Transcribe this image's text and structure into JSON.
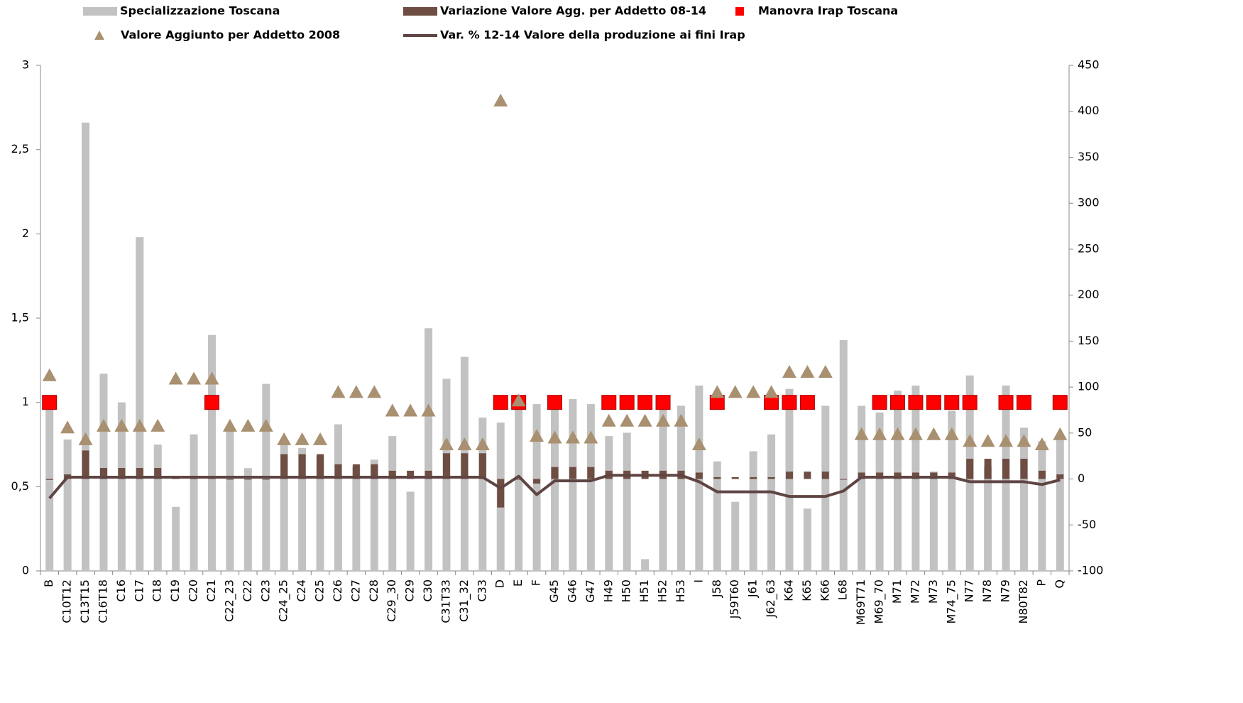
{
  "chart_data": {
    "type": "combo",
    "categories": [
      "B",
      "C10T12",
      "C13T15",
      "C16T18",
      "C16",
      "C17",
      "C18",
      "C19",
      "C20",
      "C21",
      "C22_23",
      "C22",
      "C23",
      "C24_25",
      "C24",
      "C25",
      "C26",
      "C27",
      "C28",
      "C29_30",
      "C29",
      "C30",
      "C31T33",
      "C31_32",
      "C33",
      "D",
      "E",
      "F",
      "G45",
      "G46",
      "G47",
      "H49",
      "H50",
      "H51",
      "H52",
      "H53",
      "I",
      "J58",
      "J59T60",
      "J61",
      "J62_63",
      "K64",
      "K65",
      "K66",
      "L68",
      "M69T71",
      "M69_70",
      "M71",
      "M72",
      "M73",
      "M74_75",
      "N77",
      "N78",
      "N79",
      "N80T82",
      "P",
      "Q"
    ],
    "series": [
      {
        "name": "Specializzazione   Toscana",
        "type": "bar",
        "color": "#c3c2c2",
        "values": [
          0.98,
          0.78,
          2.66,
          1.17,
          1.0,
          1.98,
          0.75,
          0.38,
          0.81,
          1.4,
          0.85,
          0.61,
          1.11,
          0.75,
          0.73,
          0.68,
          0.87,
          0.62,
          0.66,
          0.8,
          0.47,
          1.44,
          1.14,
          1.27,
          0.91,
          0.88,
          0.98,
          0.99,
          0.98,
          1.02,
          0.99,
          0.8,
          0.82,
          0.07,
          0.96,
          0.98,
          1.1,
          0.65,
          0.41,
          0.71,
          0.81,
          1.08,
          0.37,
          0.98,
          1.37,
          0.98,
          0.94,
          1.07,
          1.1,
          0.59,
          0.95,
          1.16,
          0.62,
          1.1,
          0.85,
          0.77,
          0.8
        ]
      },
      {
        "name": "Variazione Valore Agg. per Addetto 08-14",
        "type": "bar",
        "axis": "y2",
        "color": "#6e4d42",
        "values": [
          -1,
          5,
          31,
          12,
          12,
          12,
          12,
          2,
          2,
          2,
          0,
          0,
          0,
          27,
          27,
          27,
          16,
          16,
          16,
          9,
          9,
          9,
          28,
          28,
          28,
          -31,
          0,
          -5,
          13,
          13,
          13,
          9,
          9,
          9,
          9,
          9,
          7,
          2,
          2,
          2,
          2,
          8,
          8,
          8,
          0,
          7,
          7,
          7,
          7,
          7,
          7,
          22,
          22,
          22,
          22,
          9,
          5
        ]
      },
      {
        "name": "Manovra Irap   Toscana",
        "type": "square",
        "color": "#ff0000",
        "values": [
          1,
          null,
          null,
          null,
          null,
          null,
          null,
          null,
          null,
          1,
          null,
          null,
          null,
          null,
          null,
          null,
          null,
          null,
          null,
          null,
          null,
          null,
          null,
          null,
          null,
          1,
          1,
          null,
          1,
          null,
          null,
          1,
          1,
          1,
          1,
          null,
          null,
          1,
          null,
          null,
          1,
          1,
          1,
          null,
          null,
          null,
          1,
          1,
          1,
          1,
          1,
          1,
          null,
          1,
          1,
          null,
          1
        ]
      },
      {
        "name": "Valore Aggiunto per Addetto 2008",
        "type": "triangle",
        "color": "#a89070",
        "values": [
          1.16,
          0.85,
          0.78,
          0.86,
          0.86,
          0.86,
          0.86,
          1.14,
          1.14,
          1.14,
          0.86,
          0.86,
          0.86,
          0.78,
          0.78,
          0.78,
          1.06,
          1.06,
          1.06,
          0.95,
          0.95,
          0.95,
          0.75,
          0.75,
          0.75,
          2.79,
          1.01,
          0.8,
          0.79,
          0.79,
          0.79,
          0.89,
          0.89,
          0.89,
          0.89,
          0.89,
          0.75,
          1.06,
          1.06,
          1.06,
          1.06,
          1.18,
          1.18,
          1.18,
          null,
          0.81,
          0.81,
          0.81,
          0.81,
          0.81,
          0.81,
          0.77,
          0.77,
          0.77,
          0.77,
          0.75,
          0.81
        ]
      },
      {
        "name": "Var. % 12-14 Valore della produzione ai fini Irap",
        "type": "line",
        "axis": "y2",
        "color": "#5e4543",
        "values": [
          -21,
          2,
          2,
          2,
          2,
          2,
          2,
          2,
          2,
          2,
          2,
          2,
          2,
          2,
          2,
          2,
          2,
          2,
          2,
          2,
          2,
          2,
          2,
          2,
          2,
          -10,
          3,
          -17,
          -2,
          -2,
          -2,
          4,
          4,
          4,
          4,
          4,
          -3,
          -14,
          -14,
          -14,
          -14,
          -19,
          -19,
          -19,
          -13,
          2,
          2,
          2,
          2,
          2,
          2,
          -3,
          -3,
          -3,
          -3,
          -6,
          -1
        ]
      }
    ],
    "ylim": [
      0,
      3
    ],
    "yticks": [
      0,
      {
        "value": 0.5,
        "label": "0,5"
      },
      1,
      {
        "value": 1.5,
        "label": "1,5"
      },
      2,
      {
        "value": 2.5,
        "label": "2,5"
      },
      3
    ],
    "y2lim": [
      -100,
      450
    ],
    "y2ticks": [
      -100,
      -50,
      0,
      50,
      100,
      150,
      200,
      250,
      300,
      350,
      400,
      450
    ],
    "legend": "top"
  }
}
